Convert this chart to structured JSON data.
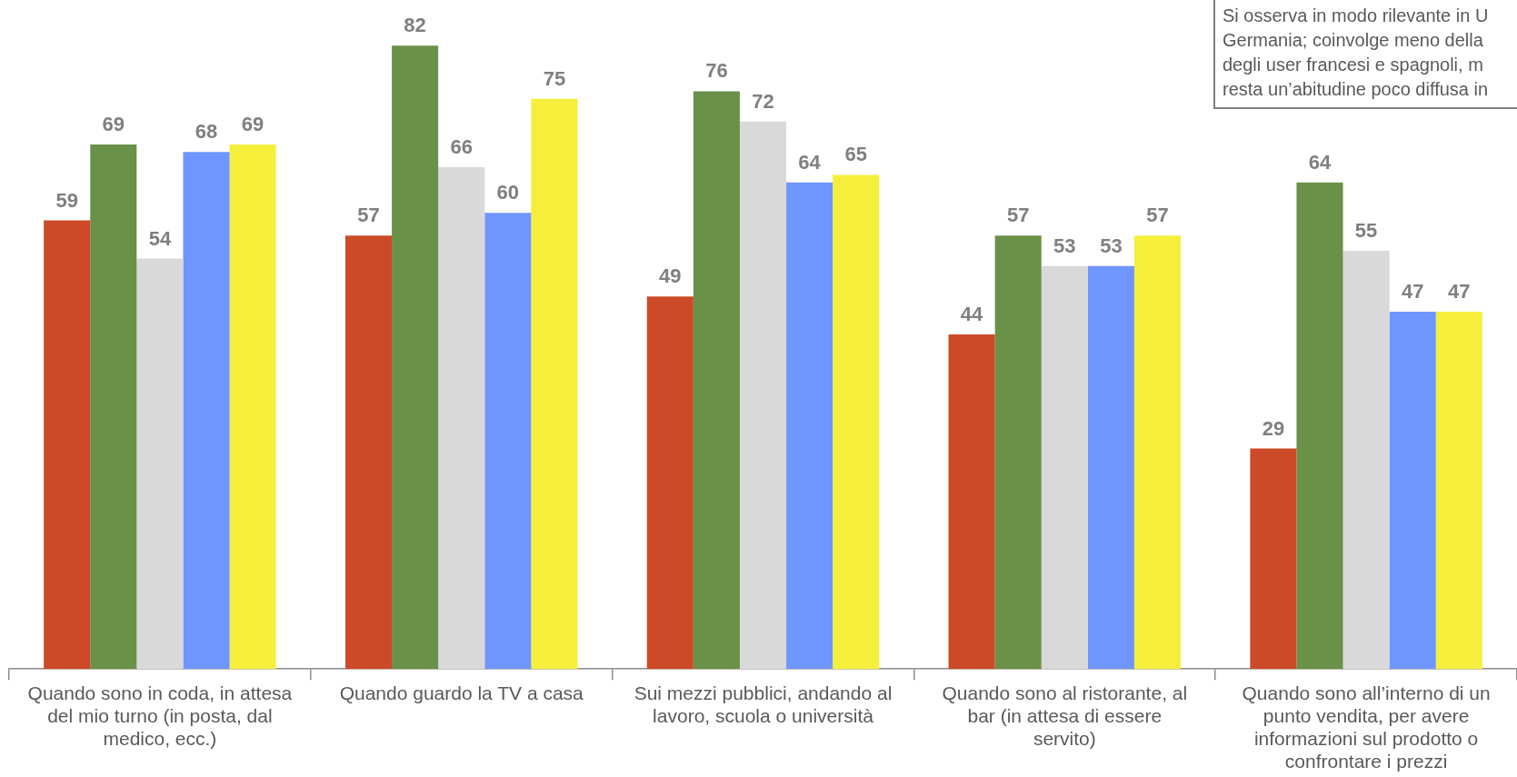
{
  "chart_data": {
    "type": "bar",
    "categories": [
      "Quando sono in coda, in attesa del mio turno (in posta, dal medico, ecc.)",
      "Quando guardo la TV a casa",
      "Sui mezzi pubblici, andando al lavoro, scuola o università",
      "Quando sono al ristorante, al bar (in attesa di essere servito)",
      "Quando sono all’interno di un punto vendita, per avere informazioni sul prodotto o confrontare i prezzi"
    ],
    "series": [
      {
        "color": "#cc4a27",
        "values": [
          59,
          57,
          49,
          44,
          29
        ]
      },
      {
        "color": "#6a9148",
        "values": [
          69,
          82,
          76,
          57,
          64
        ]
      },
      {
        "color": "#d9d9d9",
        "values": [
          54,
          66,
          72,
          53,
          55
        ]
      },
      {
        "color": "#6f95ff",
        "values": [
          68,
          60,
          64,
          53,
          47
        ]
      },
      {
        "color": "#f5ef3c",
        "values": [
          69,
          75,
          65,
          57,
          47
        ]
      }
    ],
    "ylim": [
      0,
      88
    ],
    "data_labels": true,
    "grid": false,
    "legend": false,
    "annotations": [
      "Si osserva in modo rilevante in U",
      "Germania; coinvolge meno della",
      "degli user francesi e spagnoli, m",
      "resta un’abitudine poco diffusa in"
    ]
  }
}
